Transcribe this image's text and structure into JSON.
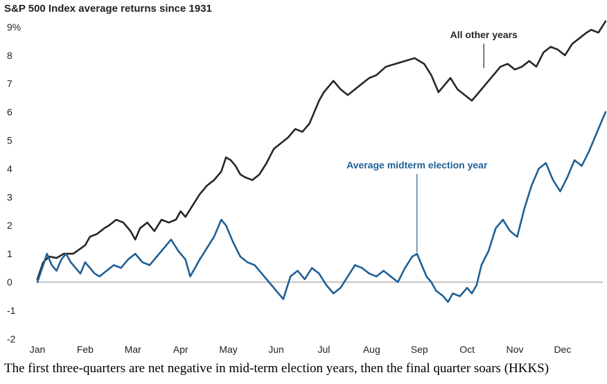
{
  "chart_data": {
    "type": "line",
    "title": "S&P 500 Index average returns since 1931",
    "xlabel": "",
    "ylabel": "",
    "categories": [
      "Jan",
      "Feb",
      "Mar",
      "Apr",
      "May",
      "Jun",
      "Jul",
      "Aug",
      "Sep",
      "Oct",
      "Nov",
      "Dec"
    ],
    "ylim": [
      -2,
      9.5
    ],
    "yticks": [
      "9%",
      "8",
      "7",
      "6",
      "5",
      "4",
      "3",
      "2",
      "1",
      "0",
      "-1",
      "-2"
    ],
    "ytick_values": [
      9,
      8,
      7,
      6,
      5,
      4,
      3,
      2,
      1,
      0,
      -1,
      -2
    ],
    "x_range": [
      0,
      11.9
    ],
    "zero_line": true,
    "grid": false,
    "series": [
      {
        "name": "All other years",
        "color": "#262626",
        "x": [
          0,
          0.12,
          0.25,
          0.4,
          0.55,
          0.75,
          1.0,
          1.1,
          1.25,
          1.4,
          1.5,
          1.65,
          1.8,
          1.95,
          2.05,
          2.15,
          2.3,
          2.45,
          2.6,
          2.75,
          2.9,
          3.0,
          3.1,
          3.25,
          3.4,
          3.55,
          3.7,
          3.85,
          3.95,
          4.05,
          4.15,
          4.25,
          4.35,
          4.5,
          4.65,
          4.8,
          4.95,
          5.1,
          5.25,
          5.4,
          5.55,
          5.7,
          5.8,
          5.9,
          6.0,
          6.1,
          6.2,
          6.35,
          6.5,
          6.65,
          6.8,
          6.95,
          7.1,
          7.3,
          7.5,
          7.7,
          7.9,
          8.1,
          8.25,
          8.4,
          8.55,
          8.65,
          8.8,
          8.95,
          9.1,
          9.25,
          9.4,
          9.55,
          9.7,
          9.85,
          10.0,
          10.15,
          10.3,
          10.45,
          10.6,
          10.75,
          10.9,
          11.05,
          11.2,
          11.35,
          11.5,
          11.6,
          11.75,
          11.9
        ],
        "values": [
          0.1,
          0.7,
          0.9,
          0.85,
          1.0,
          1.0,
          1.3,
          1.6,
          1.7,
          1.9,
          2.0,
          2.2,
          2.1,
          1.8,
          1.5,
          1.9,
          2.1,
          1.8,
          2.2,
          2.1,
          2.2,
          2.5,
          2.3,
          2.7,
          3.1,
          3.4,
          3.6,
          3.9,
          4.4,
          4.3,
          4.1,
          3.8,
          3.7,
          3.6,
          3.8,
          4.2,
          4.7,
          4.9,
          5.1,
          5.4,
          5.3,
          5.6,
          6.0,
          6.4,
          6.7,
          6.9,
          7.1,
          6.8,
          6.6,
          6.8,
          7.0,
          7.2,
          7.3,
          7.6,
          7.7,
          7.8,
          7.9,
          7.7,
          7.3,
          6.7,
          7.0,
          7.2,
          6.8,
          6.6,
          6.4,
          6.7,
          7.0,
          7.3,
          7.6,
          7.7,
          7.5,
          7.6,
          7.8,
          7.6,
          8.1,
          8.3,
          8.2,
          8.0,
          8.4,
          8.6,
          8.8,
          8.9,
          8.8,
          9.2
        ]
      },
      {
        "name": "Average midterm election year",
        "color": "#1f5f96",
        "x": [
          0,
          0.1,
          0.2,
          0.3,
          0.4,
          0.5,
          0.6,
          0.7,
          0.8,
          0.9,
          1.0,
          1.1,
          1.2,
          1.3,
          1.45,
          1.6,
          1.75,
          1.9,
          2.05,
          2.2,
          2.35,
          2.5,
          2.65,
          2.8,
          2.95,
          3.1,
          3.2,
          3.3,
          3.4,
          3.55,
          3.7,
          3.85,
          3.95,
          4.1,
          4.25,
          4.4,
          4.55,
          4.7,
          4.85,
          5.0,
          5.15,
          5.3,
          5.45,
          5.6,
          5.75,
          5.9,
          6.05,
          6.2,
          6.35,
          6.5,
          6.65,
          6.8,
          6.95,
          7.1,
          7.25,
          7.4,
          7.55,
          7.7,
          7.85,
          7.95,
          8.05,
          8.15,
          8.25,
          8.35,
          8.5,
          8.6,
          8.7,
          8.85,
          9.0,
          9.1,
          9.2,
          9.3,
          9.45,
          9.6,
          9.75,
          9.9,
          10.05,
          10.2,
          10.35,
          10.5,
          10.65,
          10.8,
          10.95,
          11.1,
          11.25,
          11.4,
          11.55,
          11.7,
          11.9
        ],
        "values": [
          0.0,
          0.5,
          1.0,
          0.6,
          0.4,
          0.8,
          1.0,
          0.7,
          0.5,
          0.3,
          0.7,
          0.5,
          0.3,
          0.2,
          0.4,
          0.6,
          0.5,
          0.8,
          1.0,
          0.7,
          0.6,
          0.9,
          1.2,
          1.5,
          1.1,
          0.8,
          0.2,
          0.5,
          0.8,
          1.2,
          1.6,
          2.2,
          2.0,
          1.4,
          0.9,
          0.7,
          0.6,
          0.3,
          0.0,
          -0.3,
          -0.6,
          0.2,
          0.4,
          0.1,
          0.5,
          0.3,
          -0.1,
          -0.4,
          -0.2,
          0.2,
          0.6,
          0.5,
          0.3,
          0.2,
          0.4,
          0.2,
          0.0,
          0.5,
          0.9,
          1.0,
          0.6,
          0.2,
          0.0,
          -0.3,
          -0.5,
          -0.7,
          -0.4,
          -0.5,
          -0.2,
          -0.4,
          -0.1,
          0.6,
          1.1,
          1.9,
          2.2,
          1.8,
          1.6,
          2.6,
          3.4,
          4.0,
          4.2,
          3.6,
          3.2,
          3.7,
          4.3,
          4.1,
          4.6,
          5.2,
          6.0
        ]
      }
    ],
    "annotations": [
      {
        "text": "All other years",
        "series": 0,
        "x": 9.35,
        "y": 7.55,
        "color": "#262626"
      },
      {
        "text": "Average midterm election year",
        "series": 1,
        "x": 7.95,
        "y": 1.05,
        "color": "#1f5f96"
      }
    ]
  },
  "caption": "The first three-quarters are net negative in mid-term election years, then the final quarter soars (HKKS)"
}
